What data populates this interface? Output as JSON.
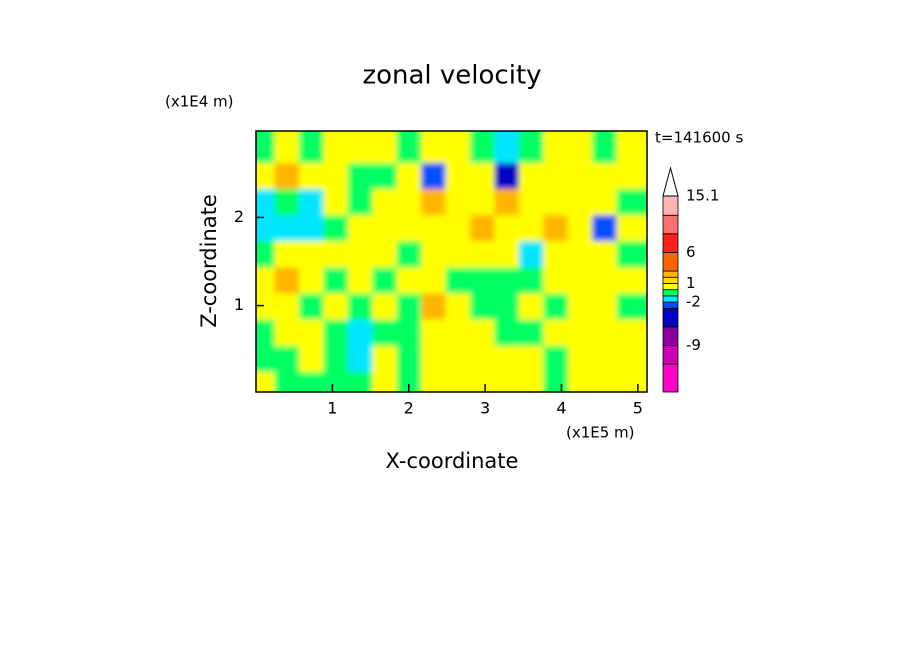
{
  "chart_data": {
    "type": "contour",
    "title": "zonal velocity",
    "time_label": "t=141600 s",
    "xlabel": "X-coordinate",
    "ylabel": "Z-coordinate",
    "x_unit": "(x1E5 m)",
    "y_unit": "(x1E4 m)",
    "xlim": [
      0,
      5.12
    ],
    "ylim": [
      0.02,
      2.98
    ],
    "xticks": [
      1,
      2,
      3,
      4,
      5
    ],
    "yticks": [
      1,
      2
    ],
    "x": [
      0.16,
      0.48,
      0.8,
      1.12,
      1.44,
      1.76,
      2.08,
      2.4,
      2.72,
      3.04,
      3.36,
      3.68,
      4.0,
      4.32,
      4.64,
      4.96
    ],
    "y": [
      0.17,
      0.46,
      0.76,
      1.06,
      1.35,
      1.65,
      1.95,
      2.24,
      2.54,
      2.83
    ],
    "z": [
      [
        0.5,
        -0.5,
        -0.5,
        -0.5,
        -0.5,
        0.5,
        -0.5,
        0.5,
        0.5,
        0.5,
        0.5,
        0.5,
        -0.5,
        0.5,
        0.5,
        0.5
      ],
      [
        -0.5,
        -0.5,
        0.5,
        -0.5,
        -1.5,
        0.5,
        -0.5,
        0.5,
        0.5,
        0.5,
        0.5,
        0.5,
        -0.5,
        0.5,
        0.5,
        0.5
      ],
      [
        -0.5,
        0.5,
        0.5,
        -0.5,
        -1.5,
        -0.5,
        -0.5,
        0.5,
        0.5,
        0.5,
        -0.5,
        -0.5,
        0.5,
        0.5,
        0.5,
        0.5
      ],
      [
        0.5,
        0.5,
        -0.5,
        0.5,
        -0.5,
        0.5,
        -0.5,
        2.5,
        0.5,
        -0.5,
        -0.5,
        0.5,
        -0.5,
        0.5,
        0.5,
        -0.5
      ],
      [
        0.5,
        2.5,
        0.5,
        -0.5,
        0.5,
        -0.5,
        0.5,
        0.5,
        -0.5,
        -0.5,
        -0.5,
        -0.5,
        0.5,
        0.5,
        0.5,
        0.5
      ],
      [
        -0.5,
        0.5,
        0.5,
        0.5,
        0.5,
        0.5,
        -0.5,
        0.5,
        0.5,
        0.5,
        0.5,
        -1.5,
        0.5,
        0.5,
        0.5,
        -0.5
      ],
      [
        -1.5,
        -1.5,
        -1.5,
        -0.5,
        0.5,
        0.5,
        0.5,
        0.5,
        0.5,
        2.5,
        0.5,
        0.5,
        2.5,
        0.5,
        -2.5,
        0.5
      ],
      [
        -1.5,
        -0.5,
        -1.5,
        0.5,
        -0.5,
        0.5,
        0.5,
        2.5,
        0.5,
        0.5,
        2.5,
        0.5,
        0.5,
        0.5,
        0.5,
        -0.5
      ],
      [
        0.5,
        2.5,
        0.5,
        0.5,
        -0.5,
        -0.5,
        0.5,
        -2.5,
        0.5,
        0.5,
        -4,
        0.5,
        0.5,
        0.5,
        0.5,
        0.5
      ],
      [
        -0.5,
        0.5,
        -0.5,
        0.5,
        0.5,
        0.5,
        -0.5,
        0.5,
        0.5,
        -0.5,
        -1.5,
        -0.5,
        0.5,
        0.5,
        -0.5,
        0.5
      ]
    ],
    "levels": [
      -16.5,
      -12,
      -9,
      -6,
      -3,
      -2,
      -1,
      0,
      1,
      2,
      3,
      6,
      9,
      12,
      15.1
    ],
    "level_colors": [
      "#ff00c8",
      "#c800b4",
      "#8c00a0",
      "#0000c8",
      "#0050ff",
      "#00e6ff",
      "#00ff64",
      "#ffff00",
      "#ffdc00",
      "#ffb400",
      "#ff6400",
      "#ff1e1e",
      "#ff6e6e",
      "#ffb4b4"
    ],
    "colorbar_ticks": [
      15.1,
      6,
      1,
      -2,
      -9
    ]
  }
}
